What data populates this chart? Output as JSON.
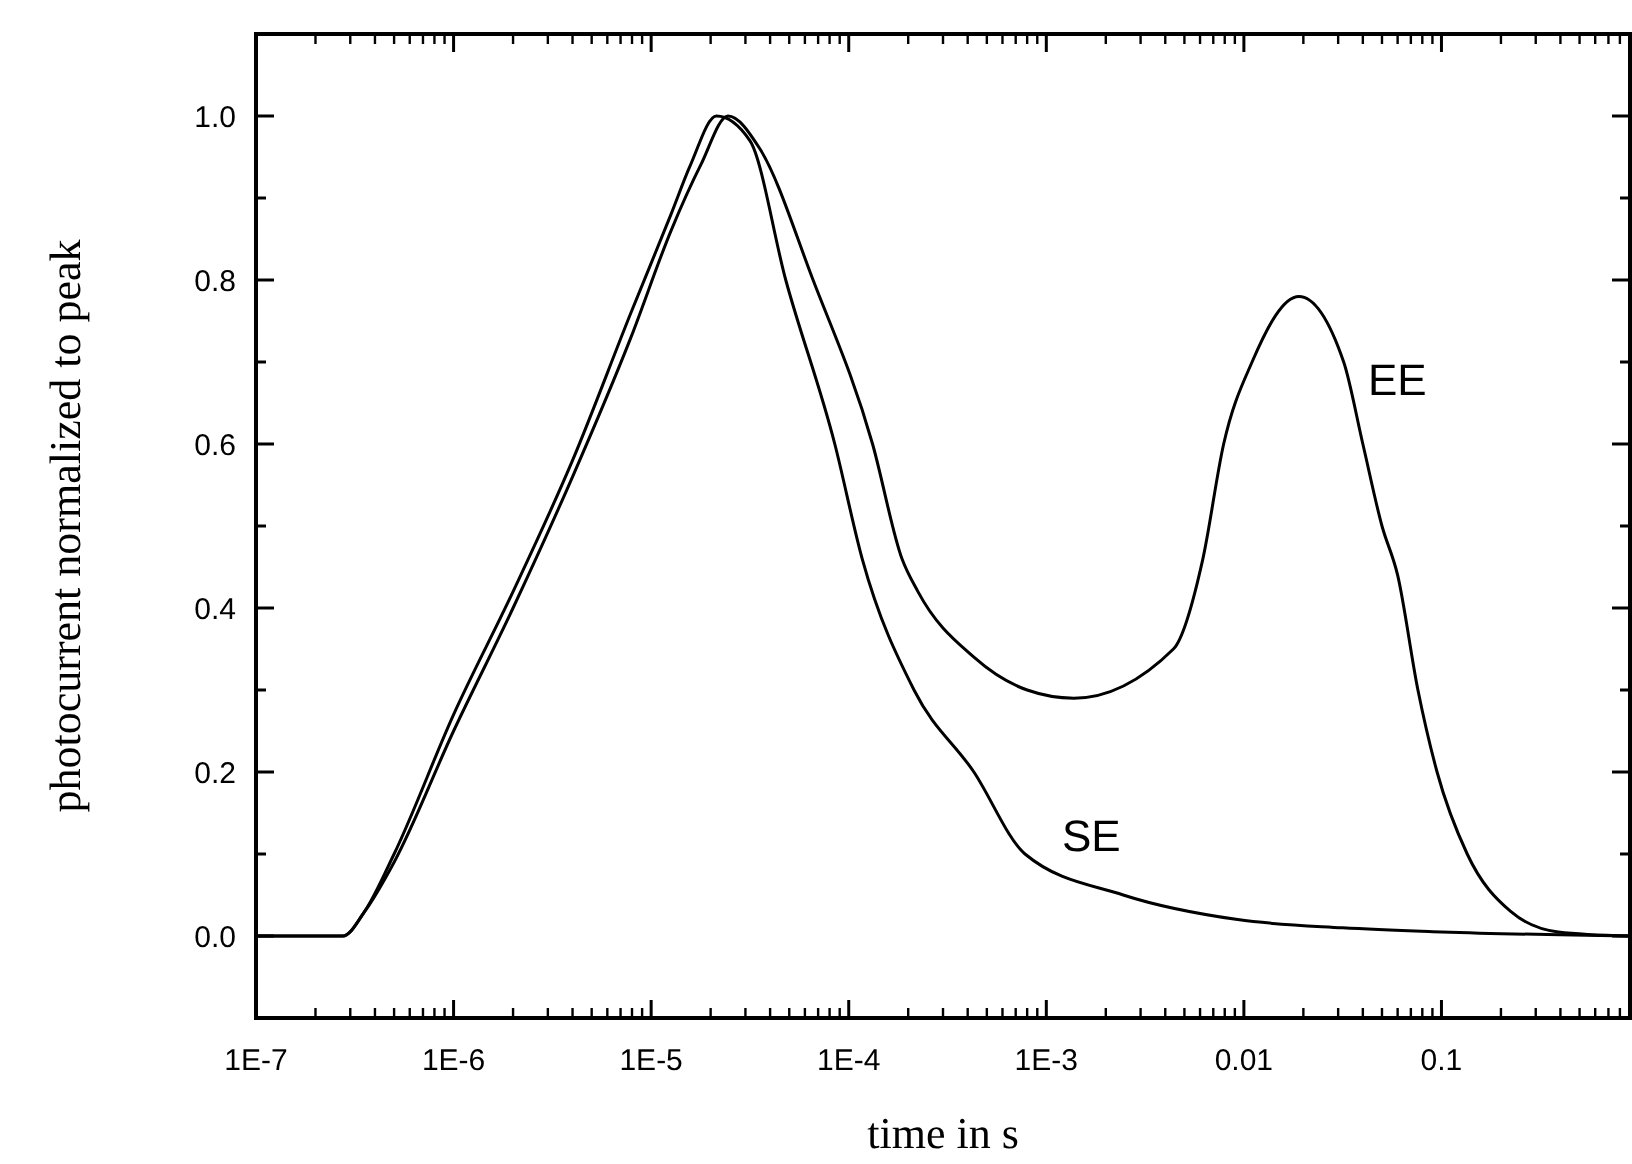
{
  "chart_data": {
    "type": "line",
    "xlabel": "time in s",
    "ylabel": "photocurrent normalized to peak",
    "log": "x",
    "grid": false,
    "marker": "none",
    "line_style": "solid",
    "xlim": [
      1e-07,
      0.9
    ],
    "ylim": [
      -0.1,
      1.1
    ],
    "xticks": [
      {
        "value": 1e-07,
        "label": "1E-7"
      },
      {
        "value": 1e-06,
        "label": "1E-6"
      },
      {
        "value": 1e-05,
        "label": "1E-5"
      },
      {
        "value": 0.0001,
        "label": "1E-4"
      },
      {
        "value": 0.001,
        "label": "1E-3"
      },
      {
        "value": 0.01,
        "label": "0.01"
      },
      {
        "value": 0.1,
        "label": "0.1"
      }
    ],
    "yticks": [
      {
        "value": 0,
        "label": "0.0"
      },
      {
        "value": 0.1,
        "label": null
      },
      {
        "value": 0.2,
        "label": "0.2"
      },
      {
        "value": 0.3,
        "label": null
      },
      {
        "value": 0.4,
        "label": "0.4"
      },
      {
        "value": 0.5,
        "label": null
      },
      {
        "value": 0.6,
        "label": "0.6"
      },
      {
        "value": 0.7,
        "label": null
      },
      {
        "value": 0.8,
        "label": "0.8"
      },
      {
        "value": 0.9,
        "label": null
      },
      {
        "value": 1,
        "label": "1.0"
      }
    ],
    "series": [
      {
        "name": "SE",
        "color": "#000000",
        "x": [
          1e-07,
          2.75e-07,
          3.55e-07,
          5e-07,
          1e-06,
          2e-06,
          4e-06,
          7.9e-06,
          1.26e-05,
          1.58e-05,
          2.14e-05,
          3.16e-05,
          4.8e-05,
          8.5e-05,
          0.000117,
          0.000214,
          0.00043,
          0.00078,
          0.00245,
          0.0093,
          0.0316,
          0.1,
          0.89
        ],
        "values": [
          0,
          0,
          0.03,
          0.1,
          0.27,
          0.42,
          0.58,
          0.76,
          0.88,
          0.94,
          1.0,
          0.97,
          0.8,
          0.6,
          0.46,
          0.3,
          0.2,
          0.1,
          0.05,
          0.02,
          0.01,
          0.005,
          0
        ]
      },
      {
        "name": "EE",
        "color": "#000000",
        "x": [
          1e-07,
          2.75e-07,
          3.55e-07,
          5e-07,
          1e-06,
          2e-06,
          4e-06,
          7.9e-06,
          1.26e-05,
          1.78e-05,
          2.45e-05,
          3.55e-05,
          6.6e-05,
          0.000132,
          0.000186,
          0.000224,
          0.00043,
          0.0008,
          0.00138,
          0.0044,
          0.0062,
          0.0079,
          0.011,
          0.019,
          0.032,
          0.04,
          0.05,
          0.06,
          0.076,
          0.095,
          0.135,
          0.224,
          0.39,
          0.89
        ],
        "values": [
          0,
          0,
          0.03,
          0.09,
          0.25,
          0.4,
          0.56,
          0.73,
          0.86,
          0.94,
          1.0,
          0.96,
          0.8,
          0.6,
          0.46,
          0.42,
          0.34,
          0.3,
          0.29,
          0.35,
          0.46,
          0.6,
          0.7,
          0.78,
          0.7,
          0.6,
          0.5,
          0.44,
          0.3,
          0.2,
          0.1,
          0.03,
          0.005,
          0
        ]
      }
    ]
  }
}
